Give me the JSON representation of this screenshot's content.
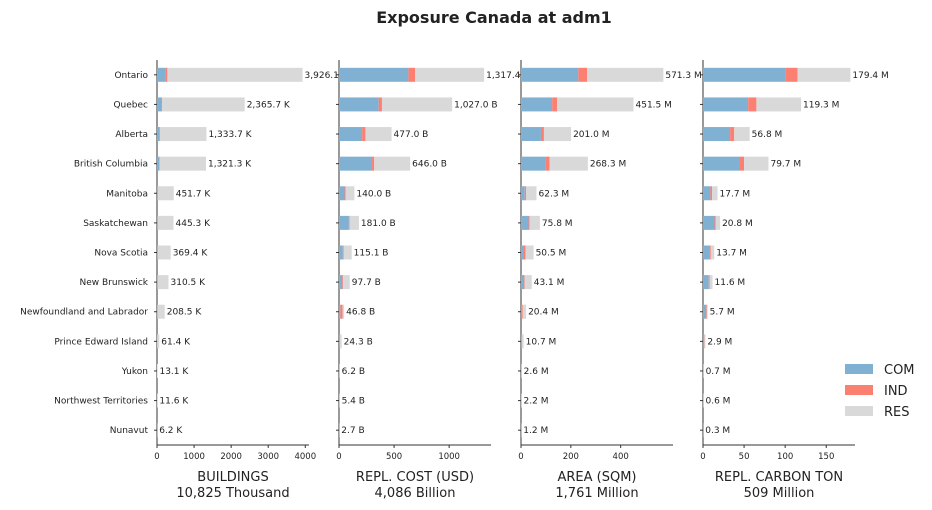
{
  "chart_data": {
    "type": "bar",
    "orientation": "horizontal",
    "stacked": true,
    "title": "Exposure Canada at adm1",
    "categories": [
      "Ontario",
      "Quebec",
      "Alberta",
      "British Columbia",
      "Manitoba",
      "Saskatchewan",
      "Nova Scotia",
      "New Brunswick",
      "Newfoundland and Labrador",
      "Prince Edward Island",
      "Yukon",
      "Northwest Territories",
      "Nunavut"
    ],
    "legend": [
      {
        "name": "COM",
        "color": "#80b1d3"
      },
      {
        "name": "IND",
        "color": "#fb8072"
      },
      {
        "name": "RES",
        "color": "#d9d9d9"
      }
    ],
    "legend_placement": "lower-right",
    "panels": [
      {
        "xlabel": "BUILDINGS",
        "xlabel_total": "10,825 Thousand",
        "xlim": [
          0,
          4100
        ],
        "xticks": [
          0,
          1000,
          2000,
          3000,
          4000
        ],
        "series": [
          {
            "name": "COM",
            "values": [
              240,
              110,
              60,
              55,
              10,
              10,
              8,
              6,
              4,
              1,
              0.4,
              0.4,
              0.2
            ]
          },
          {
            "name": "IND",
            "values": [
              40,
              30,
              20,
              18,
              3,
              3,
              2,
              2,
              1,
              0.3,
              0.1,
              0.1,
              0.1
            ]
          },
          {
            "name": "RES",
            "values": [
              3646.1,
              2225.7,
              1253.7,
              1248.3,
              438.7,
              432.3,
              359.4,
              302.5,
              203.5,
              60.1,
              12.6,
              11.1,
              5.9
            ]
          }
        ],
        "labels": [
          "3,926.1",
          "2,365.7 K",
          "1,333.7 K",
          "1,321.3 K",
          "451.7 K",
          "445.3 K",
          "369.4 K",
          "310.5 K",
          "208.5 K",
          "61.4 K",
          "13.1 K",
          "11.6 K",
          "6.2 K"
        ]
      },
      {
        "xlabel": "REPL. COST (USD)",
        "xlabel_total": "4,086 Billion",
        "xlim": [
          0,
          1380
        ],
        "xticks": [
          0,
          500,
          1000
        ],
        "series": [
          {
            "name": "COM",
            "values": [
              630,
              360,
              210,
              300,
              50,
              90,
              35,
              30,
              12,
              8,
              2,
              2,
              1
            ]
          },
          {
            "name": "IND",
            "values": [
              60,
              30,
              30,
              20,
              10,
              5,
              8,
              7,
              20,
              2,
              0.5,
              0.5,
              0.2
            ]
          },
          {
            "name": "RES",
            "values": [
              627.4,
              637.0,
              237.0,
              326.0,
              80.0,
              86.0,
              72.1,
              60.7,
              14.8,
              14.3,
              3.7,
              2.9,
              1.5
            ]
          }
        ],
        "labels": [
          "1,317.4",
          "1,027.0 B",
          "477.0 B",
          "646.0 B",
          "140.0 B",
          "181.0 B",
          "115.1 B",
          "97.7 B",
          "46.8 B",
          "24.3 B",
          "6.2 B",
          "5.4 B",
          "2.7 B"
        ]
      },
      {
        "xlabel": "AREA (SQM)",
        "xlabel_total": "1,761 Million",
        "xlim": [
          0,
          610
        ],
        "xticks": [
          0,
          200,
          400
        ],
        "series": [
          {
            "name": "COM",
            "values": [
              230,
              125,
              80,
              100,
              15,
              30,
              12,
              10,
              4,
              3,
              0.8,
              0.7,
              0.4
            ]
          },
          {
            "name": "IND",
            "values": [
              35,
              20,
              12,
              15,
              5,
              4,
              6,
              4,
              3,
              1,
              0.2,
              0.2,
              0.1
            ]
          },
          {
            "name": "RES",
            "values": [
              306.3,
              306.5,
              109.0,
              153.3,
              42.3,
              41.8,
              32.5,
              29.1,
              13.4,
              6.7,
              1.6,
              1.3,
              0.7
            ]
          }
        ],
        "labels": [
          "571.3 M",
          "451.5 M",
          "201.0 M",
          "268.3 M",
          "62.3 M",
          "75.8 M",
          "50.5 M",
          "43.1 M",
          "20.4 M",
          "10.7 M",
          "2.6 M",
          "2.2 M",
          "1.2 M"
        ]
      },
      {
        "xlabel": "REPL. CARBON TON",
        "xlabel_total": "509 Million",
        "xlim": [
          0,
          185
        ],
        "xticks": [
          0,
          50,
          100,
          150
        ],
        "series": [
          {
            "name": "COM",
            "values": [
              100,
              55,
              33,
              45,
              9,
              14,
              8,
              7,
              4,
              1.5,
              0.4,
              0.3,
              0.15
            ]
          },
          {
            "name": "IND",
            "values": [
              15,
              10,
              5,
              5,
              2,
              1.5,
              1.5,
              1.2,
              0.8,
              0.4,
              0.1,
              0.1,
              0.05
            ]
          },
          {
            "name": "RES",
            "values": [
              64.4,
              54.3,
              18.8,
              29.7,
              6.7,
              5.3,
              4.2,
              3.4,
              0.9,
              1.0,
              0.2,
              0.2,
              0.1
            ]
          }
        ],
        "labels": [
          "179.4 M",
          "119.3 M",
          "56.8 M",
          "79.7 M",
          "17.7 M",
          "20.8 M",
          "13.7 M",
          "11.6 M",
          "5.7 M",
          "2.9 M",
          "0.7 M",
          "0.6 M",
          "0.3 M"
        ]
      }
    ]
  }
}
